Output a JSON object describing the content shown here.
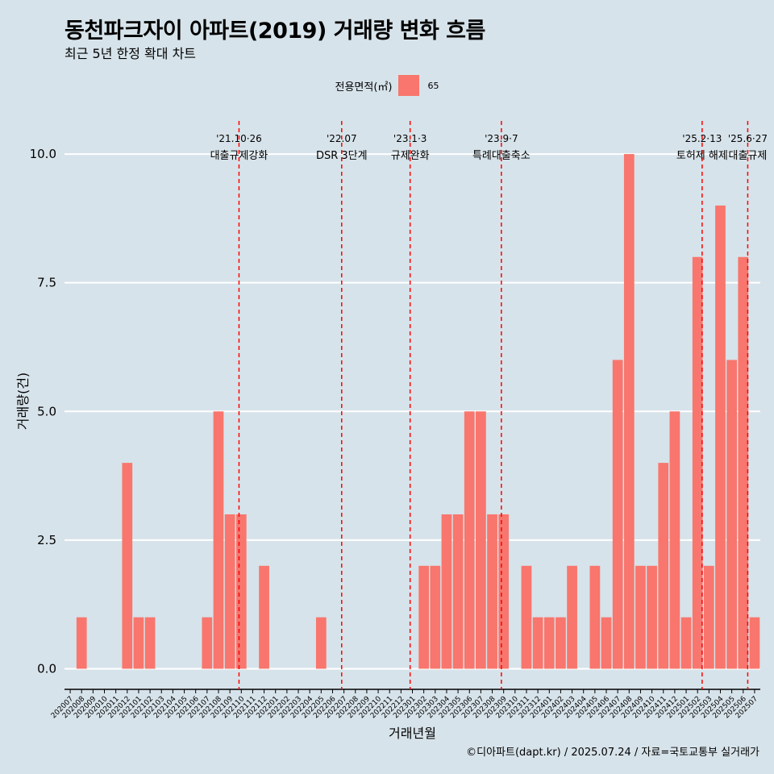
{
  "title": "동천파크자이 아파트(2019) 거래량 변화 흐름",
  "subtitle": "최근 5년 한정 확대 차트",
  "caption": "©디아파트(dapt.kr) / 2025.07.24 / 자료=국토교통부 실거래가",
  "legend": {
    "title": "전용면적(㎡)",
    "label": "65"
  },
  "colors": {
    "bar": "#f8766d",
    "event_line": "#ff0000",
    "background": "#d7e3ea",
    "grid": "#ffffff"
  },
  "chart_data": {
    "type": "bar",
    "xlabel": "거래년월",
    "ylabel": "거래량(건)",
    "ylim": [
      -0.4,
      10.8
    ],
    "yticks": [
      0.0,
      2.5,
      5.0,
      7.5,
      10.0
    ],
    "ytick_labels": [
      "0.0",
      "2.5",
      "5.0",
      "7.5",
      "10.0"
    ],
    "grid": "horizontal",
    "legend_position": "top",
    "categories": [
      "202007",
      "202008",
      "202009",
      "202010",
      "202011",
      "202012",
      "202101",
      "202102",
      "202103",
      "202104",
      "202105",
      "202106",
      "202107",
      "202108",
      "202109",
      "202110",
      "202111",
      "202112",
      "202201",
      "202202",
      "202203",
      "202204",
      "202205",
      "202206",
      "202207",
      "202208",
      "202209",
      "202210",
      "202211",
      "202212",
      "202301",
      "202302",
      "202303",
      "202304",
      "202305",
      "202306",
      "202307",
      "202308",
      "202309",
      "202310",
      "202311",
      "202312",
      "202401",
      "202402",
      "202403",
      "202404",
      "202405",
      "202406",
      "202407",
      "202408",
      "202409",
      "202410",
      "202411",
      "202412",
      "202501",
      "202502",
      "202503",
      "202504",
      "202505",
      "202506",
      "202507"
    ],
    "series": [
      {
        "name": "65",
        "values": [
          0,
          1,
          0,
          0,
          0,
          4,
          1,
          1,
          0,
          0,
          0,
          0,
          1,
          5,
          3,
          3,
          0,
          2,
          0,
          0,
          0,
          0,
          1,
          0,
          0,
          0,
          0,
          0,
          0,
          0,
          0,
          2,
          2,
          3,
          3,
          5,
          5,
          3,
          3,
          0,
          2,
          1,
          1,
          1,
          2,
          0,
          2,
          1,
          6,
          10,
          2,
          2,
          4,
          5,
          1,
          8,
          2,
          9,
          6,
          8,
          1
        ]
      }
    ],
    "events": [
      {
        "date": "'21.10·26",
        "label": "대출규제강화",
        "pos": 14.8
      },
      {
        "date": "'22.07",
        "label": "DSR 3단계",
        "pos": 23.8
      },
      {
        "date": "'23.1·3",
        "label": "규제완화",
        "pos": 29.8
      },
      {
        "date": "'23.9·7",
        "label": "특례대출축소",
        "pos": 37.8
      },
      {
        "date": "'25.2·13",
        "label": "토허제 해제",
        "pos": 55.4
      },
      {
        "date": "'25.6·27",
        "label": "대출규제",
        "pos": 59.4
      }
    ]
  }
}
